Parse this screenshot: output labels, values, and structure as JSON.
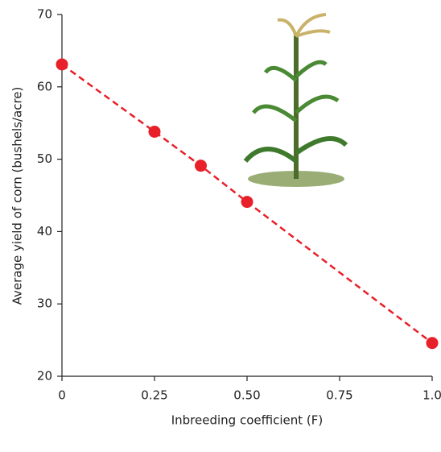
{
  "chart_data": {
    "type": "line",
    "x_label": "Inbreeding coefficient (F)",
    "y_label": "Average yield of corn (bushels/acre)",
    "x": [
      0,
      0.25,
      0.375,
      0.5,
      1
    ],
    "series": [
      {
        "color": "#e8202a",
        "values": [
          63.1,
          53.8,
          49.1,
          44.1,
          24.6
        ]
      }
    ],
    "xlim": [
      0,
      1
    ],
    "xticks": [
      0,
      0.25,
      {
        "value": 0.5,
        "label": "0.50"
      },
      0.75,
      {
        "value": 1,
        "label": "1.0"
      }
    ],
    "ylim": [
      20,
      70
    ],
    "yticks": [
      20,
      30,
      40,
      50,
      60,
      70
    ],
    "line_style": "dashed",
    "grid": false
  }
}
